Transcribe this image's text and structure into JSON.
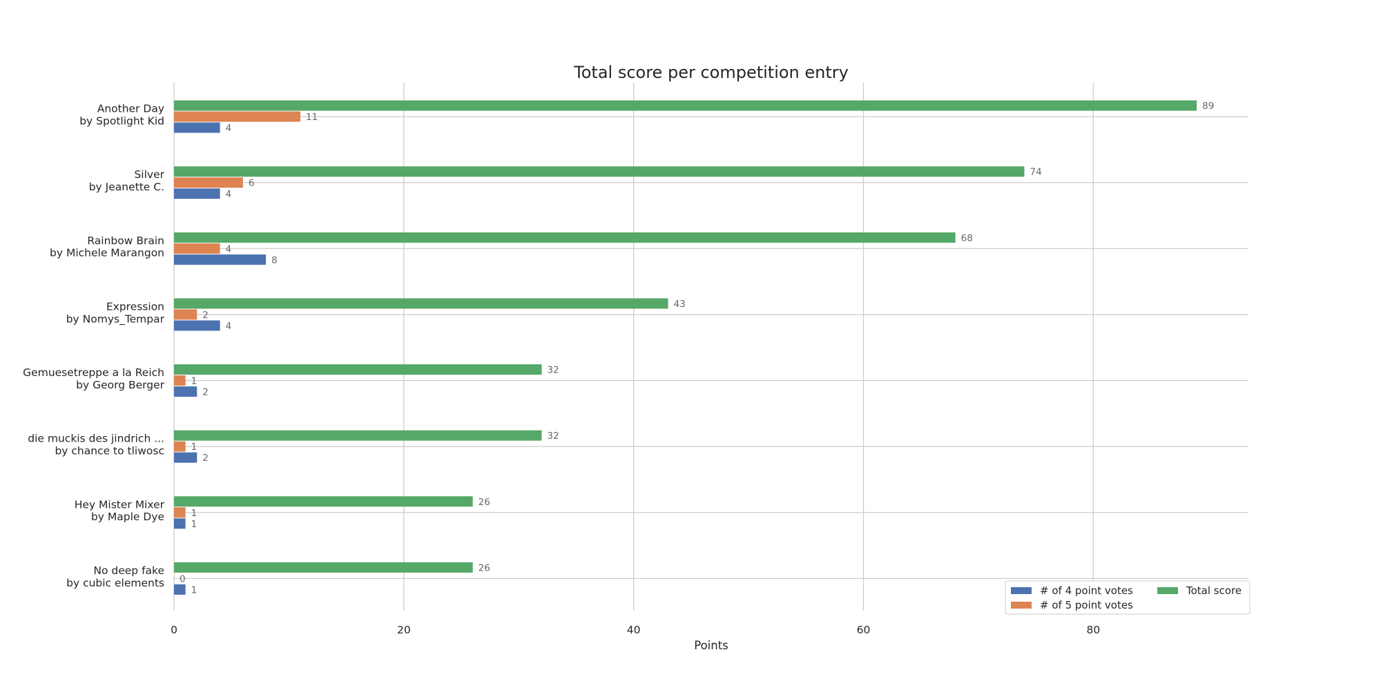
{
  "chart_data": {
    "type": "bar",
    "orientation": "horizontal",
    "title": "Total score per competition entry",
    "xlabel": "Points",
    "ylabel": "",
    "xlim": [
      0,
      93.5
    ],
    "xticks": [
      0,
      20,
      40,
      60,
      80
    ],
    "grid": true,
    "legend_placement": "lower-right",
    "categories": [
      [
        "Another Day",
        "by Spotlight Kid"
      ],
      [
        "Silver",
        "by Jeanette C."
      ],
      [
        "Rainbow Brain",
        "by Michele Marangon"
      ],
      [
        "Expression",
        "by Nomys_Tempar"
      ],
      [
        "Gemuesetreppe a la Reich",
        "by Georg Berger"
      ],
      [
        "die muckis des jindrich ...",
        "by chance to tliwosc"
      ],
      [
        "Hey Mister Mixer",
        "by Maple Dye"
      ],
      [
        "No deep fake",
        "by cubic elements"
      ]
    ],
    "series": [
      {
        "name": "# of 4 point votes",
        "color": "#4c72b0",
        "values": [
          4,
          4,
          8,
          4,
          2,
          2,
          1,
          1
        ]
      },
      {
        "name": "# of 5 point votes",
        "color": "#dd8452",
        "values": [
          11,
          6,
          4,
          2,
          1,
          1,
          1,
          0
        ]
      },
      {
        "name": "Total score",
        "color": "#55a868",
        "values": [
          89,
          74,
          68,
          43,
          32,
          32,
          26,
          26
        ]
      }
    ]
  }
}
